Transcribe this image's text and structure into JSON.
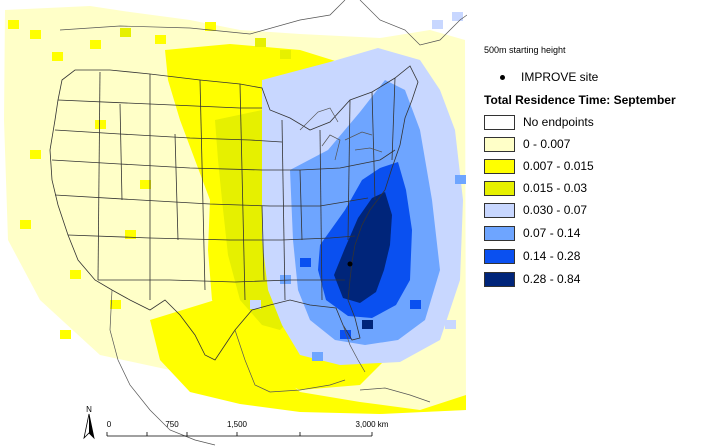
{
  "map": {
    "north_label": "N",
    "scale_labels": [
      "0",
      "750",
      "1,500",
      "3,000 km"
    ]
  },
  "legend": {
    "subtitle": "500m starting height",
    "site_label": "IMPROVE site",
    "title": "Total Residence Time: September",
    "classes": [
      {
        "label": "No endpoints",
        "color": "#FFFFFF"
      },
      {
        "label": "0 - 0.007",
        "color": "#FFFFC8"
      },
      {
        "label": "0.007 - 0.015",
        "color": "#FFFF00"
      },
      {
        "label": "0.015 - 0.03",
        "color": "#E6F000"
      },
      {
        "label": "0.030 - 0.07",
        "color": "#C8D7FF"
      },
      {
        "label": "0.07 - 0.14",
        "color": "#6EA5FF"
      },
      {
        "label": "0.14 - 0.28",
        "color": "#0A50F0"
      },
      {
        "label": "0.28 - 0.84",
        "color": "#00257A"
      }
    ]
  }
}
